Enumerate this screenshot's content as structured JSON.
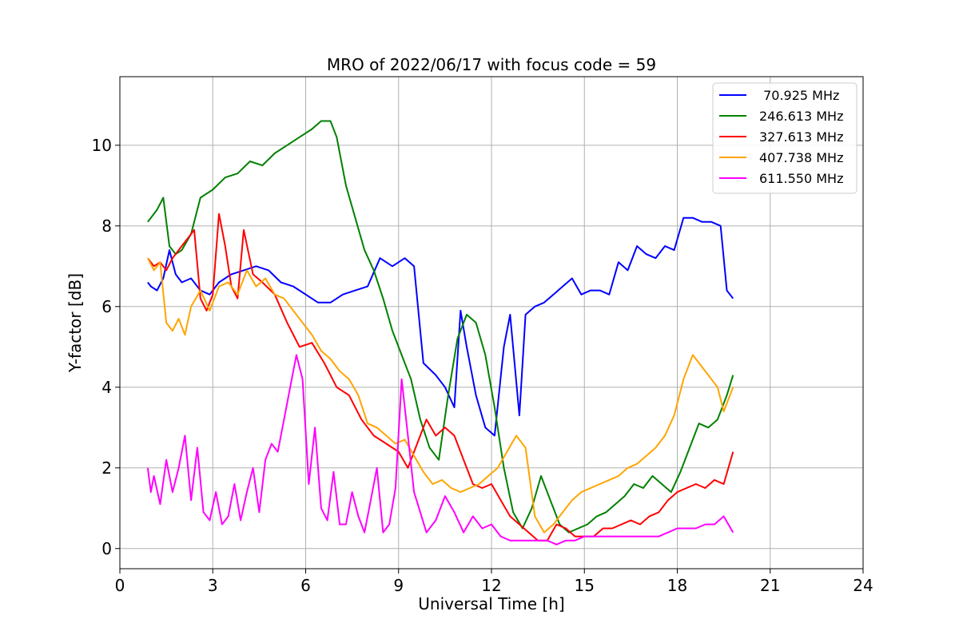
{
  "chart_data": {
    "type": "line",
    "title": "MRO of 2022/06/17 with focus code = 59",
    "xlabel": "Universal Time [h]",
    "ylabel": "Y-factor [dB]",
    "xlim": [
      0,
      24
    ],
    "ylim": [
      -0.5,
      11.7
    ],
    "xticks": [
      0,
      3,
      6,
      9,
      12,
      15,
      18,
      21,
      24
    ],
    "yticks": [
      0,
      2,
      4,
      6,
      8,
      10
    ],
    "grid": true,
    "legend_position": "top-right",
    "series": [
      {
        "name": " 70.925 MHz",
        "color": "#0000ff",
        "x": [
          0.9,
          1.0,
          1.2,
          1.4,
          1.6,
          1.8,
          2.0,
          2.3,
          2.6,
          2.9,
          3.2,
          3.6,
          4.0,
          4.4,
          4.8,
          5.2,
          5.6,
          6.0,
          6.4,
          6.8,
          7.2,
          7.6,
          8.0,
          8.4,
          8.8,
          9.2,
          9.5,
          9.8,
          10.2,
          10.5,
          10.8,
          11.0,
          11.2,
          11.5,
          11.8,
          12.1,
          12.4,
          12.6,
          12.9,
          13.1,
          13.4,
          13.7,
          14.0,
          14.3,
          14.6,
          14.9,
          15.2,
          15.5,
          15.8,
          16.1,
          16.4,
          16.7,
          17.0,
          17.3,
          17.6,
          17.9,
          18.2,
          18.5,
          18.8,
          19.1,
          19.4,
          19.6,
          19.8
        ],
        "y": [
          6.6,
          6.5,
          6.4,
          6.7,
          7.4,
          6.8,
          6.6,
          6.7,
          6.4,
          6.3,
          6.6,
          6.8,
          6.9,
          7.0,
          6.9,
          6.6,
          6.5,
          6.3,
          6.1,
          6.1,
          6.3,
          6.4,
          6.5,
          7.2,
          7.0,
          7.2,
          7.0,
          4.6,
          4.3,
          4.0,
          3.5,
          5.9,
          5.0,
          3.8,
          3.0,
          2.8,
          5.0,
          5.8,
          3.3,
          5.8,
          6.0,
          6.1,
          6.3,
          6.5,
          6.7,
          6.3,
          6.4,
          6.4,
          6.3,
          7.1,
          6.9,
          7.5,
          7.3,
          7.2,
          7.5,
          7.4,
          8.2,
          8.2,
          8.1,
          8.1,
          8.0,
          6.4,
          6.2
        ]
      },
      {
        "name": "246.613 MHz",
        "color": "#008000",
        "x": [
          0.9,
          1.2,
          1.4,
          1.6,
          1.8,
          2.0,
          2.3,
          2.6,
          3.0,
          3.4,
          3.8,
          4.2,
          4.6,
          5.0,
          5.4,
          5.8,
          6.2,
          6.5,
          6.8,
          7.0,
          7.3,
          7.6,
          7.9,
          8.2,
          8.5,
          8.8,
          9.1,
          9.4,
          9.7,
          10.0,
          10.3,
          10.6,
          10.9,
          11.2,
          11.5,
          11.8,
          12.1,
          12.4,
          12.7,
          13.0,
          13.3,
          13.6,
          13.9,
          14.2,
          14.5,
          14.8,
          15.1,
          15.4,
          15.7,
          16.0,
          16.3,
          16.6,
          16.9,
          17.2,
          17.5,
          17.8,
          18.1,
          18.4,
          18.7,
          19.0,
          19.3,
          19.6,
          19.8
        ],
        "y": [
          8.1,
          8.4,
          8.7,
          7.5,
          7.3,
          7.4,
          7.8,
          8.7,
          8.9,
          9.2,
          9.3,
          9.6,
          9.5,
          9.8,
          10.0,
          10.2,
          10.4,
          10.6,
          10.6,
          10.2,
          9.0,
          8.2,
          7.4,
          6.9,
          6.2,
          5.4,
          4.8,
          4.2,
          3.2,
          2.5,
          2.2,
          3.8,
          5.2,
          5.8,
          5.6,
          4.8,
          3.5,
          2.0,
          0.9,
          0.5,
          1.0,
          1.8,
          1.2,
          0.6,
          0.4,
          0.5,
          0.6,
          0.8,
          0.9,
          1.1,
          1.3,
          1.6,
          1.5,
          1.8,
          1.6,
          1.4,
          1.9,
          2.5,
          3.1,
          3.0,
          3.2,
          3.8,
          4.3
        ]
      },
      {
        "name": "327.613 MHz",
        "color": "#ff0000",
        "x": [
          0.9,
          1.1,
          1.3,
          1.5,
          1.7,
          1.9,
          2.1,
          2.4,
          2.6,
          2.8,
          3.0,
          3.2,
          3.4,
          3.6,
          3.8,
          4.0,
          4.3,
          4.6,
          5.0,
          5.4,
          5.8,
          6.2,
          6.6,
          7.0,
          7.4,
          7.8,
          8.2,
          8.6,
          9.0,
          9.3,
          9.6,
          9.9,
          10.2,
          10.5,
          10.8,
          11.1,
          11.4,
          11.7,
          12.0,
          12.3,
          12.6,
          12.9,
          13.2,
          13.5,
          13.8,
          14.1,
          14.4,
          14.7,
          15.0,
          15.3,
          15.6,
          15.9,
          16.2,
          16.5,
          16.8,
          17.1,
          17.4,
          17.7,
          18.0,
          18.3,
          18.6,
          18.9,
          19.2,
          19.5,
          19.8
        ],
        "y": [
          7.2,
          7.0,
          7.1,
          6.9,
          7.2,
          7.4,
          7.6,
          7.9,
          6.2,
          5.9,
          6.3,
          8.3,
          7.5,
          6.5,
          6.2,
          7.9,
          6.8,
          6.6,
          6.3,
          5.6,
          5.0,
          5.1,
          4.6,
          4.0,
          3.8,
          3.2,
          2.8,
          2.6,
          2.4,
          2.0,
          2.6,
          3.2,
          2.8,
          3.0,
          2.8,
          2.2,
          1.6,
          1.5,
          1.6,
          1.2,
          0.8,
          0.6,
          0.4,
          0.2,
          0.2,
          0.6,
          0.5,
          0.3,
          0.3,
          0.3,
          0.5,
          0.5,
          0.6,
          0.7,
          0.6,
          0.8,
          0.9,
          1.2,
          1.4,
          1.5,
          1.6,
          1.5,
          1.7,
          1.6,
          2.4
        ]
      },
      {
        "name": "407.738 MHz",
        "color": "#ffa500",
        "x": [
          0.9,
          1.1,
          1.3,
          1.5,
          1.7,
          1.9,
          2.1,
          2.3,
          2.6,
          2.9,
          3.2,
          3.5,
          3.8,
          4.1,
          4.4,
          4.7,
          5.0,
          5.3,
          5.6,
          5.9,
          6.2,
          6.5,
          6.8,
          7.1,
          7.4,
          7.7,
          8.0,
          8.3,
          8.6,
          8.9,
          9.2,
          9.5,
          9.8,
          10.1,
          10.4,
          10.7,
          11.0,
          11.3,
          11.6,
          11.9,
          12.2,
          12.5,
          12.8,
          13.1,
          13.4,
          13.7,
          14.0,
          14.3,
          14.6,
          14.9,
          15.2,
          15.5,
          15.8,
          16.1,
          16.4,
          16.7,
          17.0,
          17.3,
          17.6,
          17.9,
          18.2,
          18.5,
          18.8,
          19.1,
          19.3,
          19.5,
          19.8
        ],
        "y": [
          7.2,
          6.9,
          7.1,
          5.6,
          5.4,
          5.7,
          5.3,
          6.0,
          6.4,
          5.9,
          6.5,
          6.6,
          6.3,
          6.9,
          6.5,
          6.7,
          6.3,
          6.2,
          5.9,
          5.6,
          5.3,
          4.9,
          4.7,
          4.4,
          4.2,
          3.8,
          3.1,
          3.0,
          2.8,
          2.6,
          2.7,
          2.3,
          1.9,
          1.6,
          1.7,
          1.5,
          1.4,
          1.5,
          1.6,
          1.8,
          2.0,
          2.4,
          2.8,
          2.5,
          0.8,
          0.4,
          0.6,
          0.9,
          1.2,
          1.4,
          1.5,
          1.6,
          1.7,
          1.8,
          2.0,
          2.1,
          2.3,
          2.5,
          2.8,
          3.3,
          4.2,
          4.8,
          4.5,
          4.2,
          4.0,
          3.4,
          4.0
        ]
      },
      {
        "name": "611.550 MHz",
        "color": "#ff00ff",
        "x": [
          0.9,
          1.0,
          1.1,
          1.3,
          1.5,
          1.7,
          1.9,
          2.1,
          2.3,
          2.5,
          2.7,
          2.9,
          3.1,
          3.3,
          3.5,
          3.7,
          3.9,
          4.1,
          4.3,
          4.5,
          4.7,
          4.9,
          5.1,
          5.3,
          5.5,
          5.7,
          5.9,
          6.1,
          6.3,
          6.5,
          6.7,
          6.9,
          7.1,
          7.3,
          7.5,
          7.7,
          7.9,
          8.1,
          8.3,
          8.5,
          8.7,
          8.9,
          9.1,
          9.3,
          9.5,
          9.7,
          9.9,
          10.2,
          10.5,
          10.8,
          11.1,
          11.4,
          11.7,
          12.0,
          12.3,
          12.6,
          12.9,
          13.2,
          13.5,
          13.8,
          14.1,
          14.4,
          14.7,
          15.0,
          15.3,
          15.6,
          15.9,
          16.2,
          16.5,
          16.8,
          17.1,
          17.4,
          17.7,
          18.0,
          18.3,
          18.6,
          18.9,
          19.2,
          19.5,
          19.8
        ],
        "y": [
          2.0,
          1.4,
          1.8,
          1.1,
          2.2,
          1.4,
          2.0,
          2.8,
          1.2,
          2.5,
          0.9,
          0.7,
          1.4,
          0.6,
          0.8,
          1.6,
          0.7,
          1.4,
          2.0,
          0.9,
          2.2,
          2.6,
          2.4,
          3.2,
          4.0,
          4.8,
          4.2,
          1.6,
          3.0,
          1.0,
          0.7,
          1.9,
          0.6,
          0.6,
          1.4,
          0.8,
          0.4,
          1.2,
          2.0,
          0.4,
          0.6,
          1.5,
          4.2,
          2.8,
          1.4,
          0.9,
          0.4,
          0.7,
          1.3,
          0.9,
          0.4,
          0.8,
          0.5,
          0.6,
          0.3,
          0.2,
          0.2,
          0.2,
          0.2,
          0.2,
          0.1,
          0.2,
          0.2,
          0.3,
          0.3,
          0.3,
          0.3,
          0.3,
          0.3,
          0.3,
          0.3,
          0.3,
          0.4,
          0.5,
          0.5,
          0.5,
          0.6,
          0.6,
          0.8,
          0.4
        ]
      }
    ]
  }
}
